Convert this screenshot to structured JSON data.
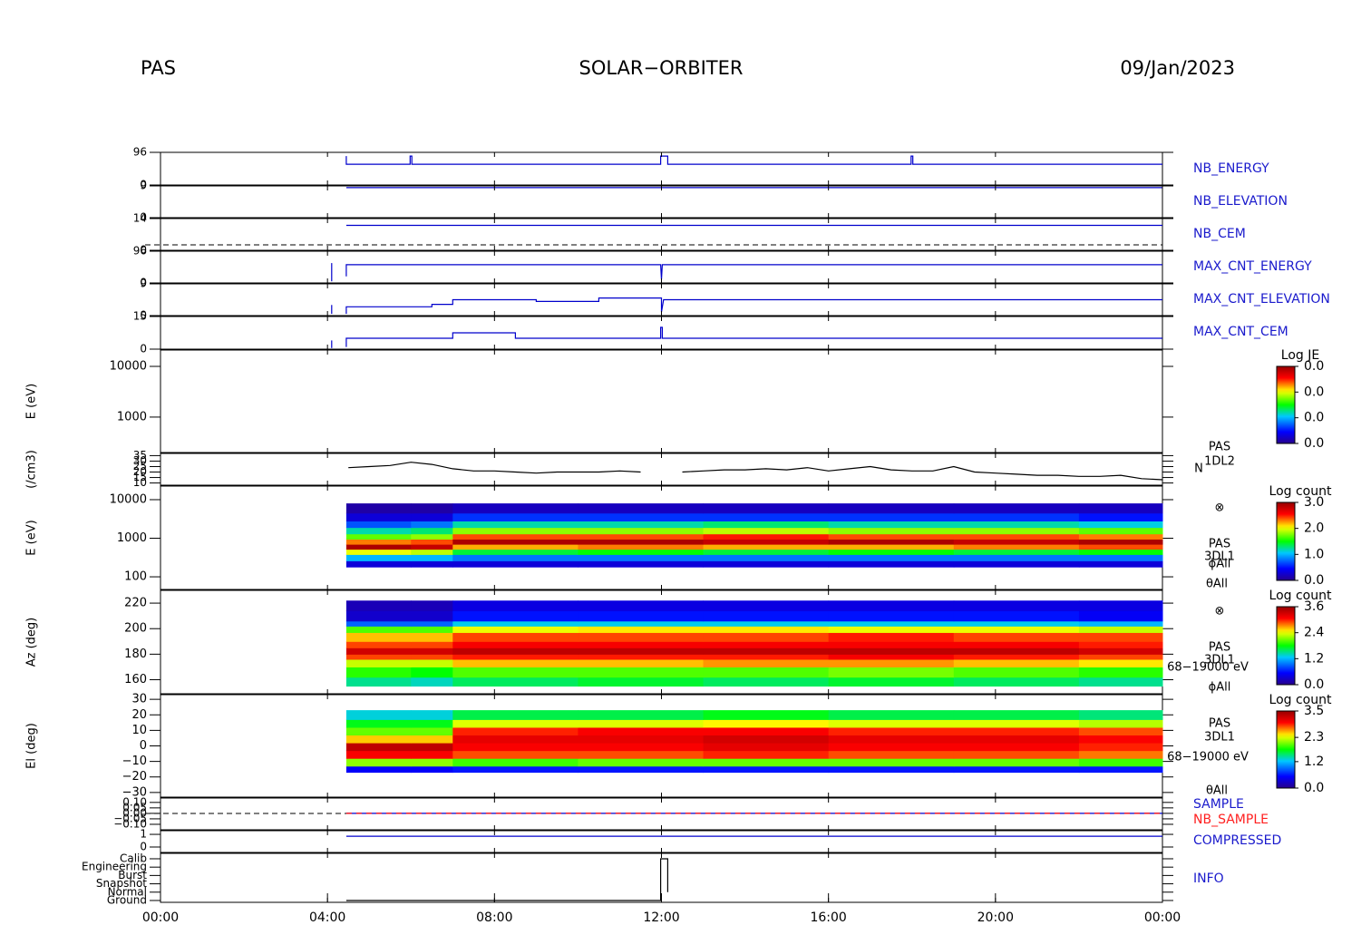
{
  "header": {
    "left": "PAS",
    "center": "SOLAR−ORBITER",
    "right": "09/Jan/2023"
  },
  "xlim": [
    0,
    24
  ],
  "xticks": [
    {
      "value": 0,
      "label": "00:00"
    },
    {
      "value": 4,
      "label": "04:00"
    },
    {
      "value": 8,
      "label": "08:00"
    },
    {
      "value": 12,
      "label": "12:00"
    },
    {
      "value": 16,
      "label": "16:00"
    },
    {
      "value": 20,
      "label": "20:00"
    },
    {
      "value": 24,
      "label": "00:00"
    }
  ],
  "chart_data": [
    {
      "type": "line",
      "label": "NB_ENERGY",
      "ylim": [
        0,
        96
      ],
      "yticks": [
        0,
        96
      ],
      "series": [
        {
          "color": "#0000cc",
          "x": [
            4.45,
            4.45,
            5.98,
            5.98,
            6.02,
            6.02,
            11.98,
            11.98,
            12.15,
            12.15,
            17.98,
            17.98,
            18.02,
            18.02,
            24
          ],
          "values": [
            85,
            61,
            61,
            85,
            85,
            61,
            61,
            85,
            85,
            61,
            61,
            85,
            85,
            61,
            61
          ]
        }
      ]
    },
    {
      "type": "line",
      "label": "NB_ELEVATION",
      "ylim": [
        0,
        9
      ],
      "yticks": [
        0,
        9
      ],
      "series": [
        {
          "color": "#0000cc",
          "x": [
            4.45,
            24
          ],
          "values": [
            8.5,
            8.5
          ]
        }
      ]
    },
    {
      "type": "line",
      "label": "NB_CEM",
      "ylim": [
        0,
        14
      ],
      "yticks": [
        0,
        14
      ],
      "series": [
        {
          "color": "#0000cc",
          "x": [
            4.45,
            24
          ],
          "values": [
            11,
            11
          ]
        }
      ]
    },
    {
      "type": "line",
      "label": "MAX_CNT_ENERGY",
      "ylim": [
        0,
        96
      ],
      "yticks": [
        0,
        96
      ],
      "series": [
        {
          "color": "#0000cc",
          "x": [
            4.1,
            4.1,
            4.3,
            4.45,
            4.45,
            11.98,
            12.0,
            12.02,
            24
          ],
          "values": [
            5,
            60,
            null,
            20,
            55,
            55,
            10,
            55,
            55
          ]
        }
      ]
    },
    {
      "type": "line",
      "label": "MAX_CNT_ELEVATION",
      "ylim": [
        0,
        9
      ],
      "yticks": [
        0,
        9
      ],
      "series": [
        {
          "color": "#0000cc",
          "x": [
            4.1,
            4.1,
            4.3,
            4.45,
            4.45,
            6.5,
            6.5,
            7.0,
            7.0,
            9.0,
            9.0,
            10.5,
            10.5,
            12.0,
            12.0,
            12.05,
            24
          ],
          "values": [
            0.5,
            3,
            null,
            0.5,
            2.5,
            2.5,
            3.2,
            3.2,
            4.5,
            4.5,
            4,
            4,
            5,
            5,
            1,
            4.5,
            4.5
          ]
        }
      ]
    },
    {
      "type": "line",
      "label": "MAX_CNT_CEM",
      "ylim": [
        0,
        15
      ],
      "yticks": [
        0,
        15
      ],
      "series": [
        {
          "color": "#0000cc",
          "x": [
            4.1,
            4.1,
            4.3,
            4.45,
            4.45,
            7.0,
            7.0,
            8.5,
            8.5,
            11.98,
            11.98,
            12.02,
            12.02,
            24
          ],
          "values": [
            0.5,
            4,
            null,
            1,
            5,
            5,
            7.5,
            7.5,
            5,
            5,
            10,
            10,
            5,
            5
          ]
        }
      ]
    },
    {
      "type": "heatmap",
      "ylabel": "E (eV)",
      "log": true,
      "ylim": [
        200,
        21000
      ],
      "yticks": [
        1000,
        10000
      ],
      "colorbar": {
        "title": "Log JE",
        "lim": [
          0,
          0.03
        ],
        "ticks": [
          {
            "value": 0,
            "label": "0.0"
          },
          {
            "value": 0.01,
            "label": "0.0"
          },
          {
            "value": 0.02,
            "label": "0.0"
          },
          {
            "value": 0.03,
            "label": "0.0"
          }
        ]
      }
    },
    {
      "type": "line",
      "ylabel": "(/cm3)",
      "ylim": [
        8,
        37
      ],
      "yticks": [
        10,
        15,
        20,
        25,
        30,
        35
      ],
      "side_labels": [
        "PAS",
        "1DL2",
        "N"
      ],
      "series": [
        {
          "color": "#000000",
          "x": [
            4.5,
            5,
            5.5,
            6,
            6.5,
            7,
            7.5,
            8,
            8.5,
            9,
            9.5,
            10,
            10.5,
            11,
            11.5,
            12,
            12.5,
            13,
            13.5,
            14,
            14.5,
            15,
            15.5,
            16,
            16.5,
            17,
            17.5,
            18,
            18.5,
            19,
            19.5,
            20,
            20.5,
            21,
            21.5,
            22,
            22.5,
            23,
            23.5,
            24
          ],
          "values": [
            24,
            25,
            26,
            29,
            27,
            23,
            21,
            21,
            20,
            19,
            20,
            20,
            20,
            21,
            20,
            null,
            20,
            21,
            22,
            22,
            23,
            22,
            24,
            21,
            23,
            25,
            22,
            21,
            21,
            25,
            20,
            19,
            18,
            17,
            17,
            16,
            16,
            17,
            14,
            13
          ]
        }
      ]
    },
    {
      "type": "heatmap",
      "ylabel": "E (eV)",
      "log": true,
      "ylim": [
        47,
        22500
      ],
      "yticks": [
        100,
        1000,
        10000
      ],
      "side_labels": [
        "⊗",
        "PAS",
        "3DL1",
        "ϕAll",
        "θAll"
      ],
      "colorbar": {
        "title": "Log count",
        "lim": [
          0,
          3
        ],
        "ticks": [
          {
            "value": 0,
            "label": "0.0"
          },
          {
            "value": 1,
            "label": "1.0"
          },
          {
            "value": 2,
            "label": "2.0"
          },
          {
            "value": 3,
            "label": "3.0"
          }
        ]
      },
      "x": [
        4.45,
        6,
        7,
        10,
        13,
        16,
        19,
        22,
        24
      ],
      "y": [
        180,
        260,
        380,
        520,
        700,
        950,
        1300,
        1900,
        2800,
        4500,
        8000
      ],
      "z": [
        [
          0.3,
          0.3,
          0.3,
          0.3,
          0.3,
          0.3,
          0.3,
          0.3
        ],
        [
          1.0,
          1.0,
          0.8,
          0.8,
          0.8,
          0.8,
          0.8,
          0.8
        ],
        [
          2.0,
          1.9,
          1.4,
          1.5,
          1.4,
          1.5,
          1.4,
          1.5
        ],
        [
          2.9,
          2.8,
          2.2,
          2.3,
          2.2,
          2.2,
          2.3,
          2.4
        ],
        [
          2.3,
          2.4,
          2.9,
          2.9,
          2.8,
          2.9,
          2.8,
          2.9
        ],
        [
          1.7,
          1.8,
          2.4,
          2.4,
          2.5,
          2.4,
          2.4,
          2.3
        ],
        [
          1.2,
          1.3,
          1.8,
          1.8,
          1.9,
          1.8,
          1.8,
          1.7
        ],
        [
          0.7,
          0.8,
          1.2,
          1.2,
          1.3,
          1.2,
          1.2,
          1.1
        ],
        [
          0.3,
          0.3,
          0.6,
          0.6,
          0.6,
          0.6,
          0.6,
          0.5
        ],
        [
          0.1,
          0.1,
          0.2,
          0.2,
          0.2,
          0.2,
          0.2,
          0.2
        ]
      ]
    },
    {
      "type": "heatmap",
      "ylabel": "Az (deg)",
      "ylim": [
        149,
        230
      ],
      "yticks": [
        160,
        180,
        200,
        220
      ],
      "side_labels": [
        "⊗",
        "PAS",
        "3DL1",
        "68−19000 eV",
        "ϕAll"
      ],
      "colorbar": {
        "title": "Log count",
        "lim": [
          0,
          3.6
        ],
        "ticks": [
          {
            "value": 0,
            "label": "0.0"
          },
          {
            "value": 1.2,
            "label": "1.2"
          },
          {
            "value": 2.4,
            "label": "2.4"
          },
          {
            "value": 3.6,
            "label": "3.6"
          }
        ]
      },
      "x": [
        4.45,
        6,
        7,
        10,
        13,
        16,
        19,
        22,
        24
      ],
      "y": [
        155,
        162,
        170,
        176,
        180,
        185,
        190,
        197,
        202,
        206,
        214,
        222
      ],
      "z": [
        [
          1.5,
          1.4,
          1.6,
          1.7,
          1.6,
          1.7,
          1.6,
          1.5
        ],
        [
          1.9,
          1.8,
          2.0,
          2.0,
          2.0,
          2.1,
          2.0,
          1.9
        ],
        [
          2.3,
          2.3,
          2.6,
          2.6,
          2.7,
          2.7,
          2.6,
          2.5
        ],
        [
          2.9,
          2.9,
          3.0,
          3.0,
          3.0,
          3.1,
          3.0,
          2.9
        ],
        [
          3.3,
          3.3,
          3.4,
          3.4,
          3.4,
          3.4,
          3.4,
          3.3
        ],
        [
          2.9,
          2.9,
          3.1,
          3.1,
          3.1,
          3.1,
          3.1,
          3.0
        ],
        [
          2.6,
          2.6,
          2.9,
          2.9,
          2.9,
          3.0,
          2.9,
          2.9
        ],
        [
          2.0,
          2.0,
          2.4,
          2.5,
          2.5,
          2.4,
          2.4,
          2.3
        ],
        [
          0.9,
          0.9,
          1.3,
          1.3,
          1.3,
          1.3,
          1.3,
          1.2
        ],
        [
          0.3,
          0.3,
          0.6,
          0.6,
          0.6,
          0.6,
          0.6,
          0.5
        ],
        [
          0.2,
          0.2,
          0.4,
          0.4,
          0.4,
          0.4,
          0.4,
          0.4
        ]
      ]
    },
    {
      "type": "heatmap",
      "ylabel": "El (deg)",
      "ylim": [
        -33,
        33
      ],
      "yticks": [
        {
          "value": -30,
          "label": "−30"
        },
        {
          "value": -20,
          "label": "−20"
        },
        {
          "value": -10,
          "label": "−10"
        },
        0,
        10,
        20,
        30
      ],
      "side_labels": [
        "PAS",
        "3DL1",
        "68−19000 eV",
        "θAll"
      ],
      "colorbar": {
        "title": "Log count",
        "lim": [
          0,
          3.5
        ],
        "ticks": [
          {
            "value": 0,
            "label": "0.0"
          },
          {
            "value": 1.2,
            "label": "1.2"
          },
          {
            "value": 2.3,
            "label": "2.3"
          },
          {
            "value": 3.5,
            "label": "3.5"
          }
        ]
      },
      "x": [
        4.45,
        6,
        7,
        10,
        13,
        16,
        19,
        22,
        24
      ],
      "y": [
        -17,
        -13,
        -8,
        -3,
        2,
        7,
        12,
        17,
        23
      ],
      "z": [
        [
          0.5,
          0.5,
          0.6,
          0.6,
          0.6,
          0.6,
          0.6,
          0.6
        ],
        [
          2.1,
          2.1,
          1.9,
          2.0,
          2.0,
          2.0,
          2.0,
          1.9
        ],
        [
          3.0,
          3.0,
          2.8,
          2.8,
          2.9,
          2.8,
          2.8,
          2.7
        ],
        [
          3.3,
          3.3,
          3.0,
          3.0,
          3.1,
          3.0,
          3.0,
          2.9
        ],
        [
          2.5,
          2.5,
          3.1,
          3.1,
          3.2,
          3.1,
          3.1,
          3.0
        ],
        [
          2.0,
          2.0,
          2.9,
          3.0,
          3.0,
          2.9,
          2.9,
          2.8
        ],
        [
          1.7,
          1.7,
          2.3,
          2.3,
          2.4,
          2.3,
          2.3,
          2.2
        ],
        [
          1.3,
          1.3,
          1.6,
          1.6,
          1.7,
          1.6,
          1.6,
          1.5
        ]
      ]
    },
    {
      "type": "line",
      "ylim": [
        -0.15,
        0.14
      ],
      "yticks": [
        {
          "value": -0.1,
          "label": "−0.10"
        },
        {
          "value": -0.05,
          "label": "−0.05"
        },
        {
          "value": 0,
          "label": "0.00"
        },
        {
          "value": 0.05,
          "label": "0.05"
        },
        {
          "value": 0.1,
          "label": "0.10"
        }
      ],
      "series": [
        {
          "name": "SAMPLE",
          "color": "#0000cc",
          "x": [
            4.45,
            24
          ],
          "values": [
            0,
            0
          ]
        },
        {
          "name": "NB_SAMPLE",
          "color": "#ff0000",
          "dashed": true,
          "x": [
            4.45,
            24
          ],
          "values": [
            0,
            0
          ]
        }
      ]
    },
    {
      "type": "line",
      "label": "COMPRESSED",
      "ylim": [
        -0.43,
        1.29
      ],
      "yticks": [
        0,
        1
      ],
      "series": [
        {
          "color": "#0000cc",
          "x": [
            4.45,
            24
          ],
          "values": [
            0.85,
            0.85
          ]
        }
      ]
    },
    {
      "type": "line",
      "label": "INFO",
      "ylim": [
        -0.22,
        5.65
      ],
      "yticks": [
        {
          "value": 0,
          "label": "Ground"
        },
        {
          "value": 1,
          "label": "Normal"
        },
        {
          "value": 2,
          "label": "Snapshot"
        },
        {
          "value": 3,
          "label": "Burst"
        },
        {
          "value": 4,
          "label": "Engineering"
        },
        {
          "value": 5,
          "label": "Calib"
        }
      ],
      "series": [
        {
          "color": "#000000",
          "x": [
            4.45,
            11.98,
            11.98,
            12.15,
            12.15
          ],
          "values": [
            0,
            0,
            5,
            5,
            1
          ]
        }
      ]
    }
  ]
}
